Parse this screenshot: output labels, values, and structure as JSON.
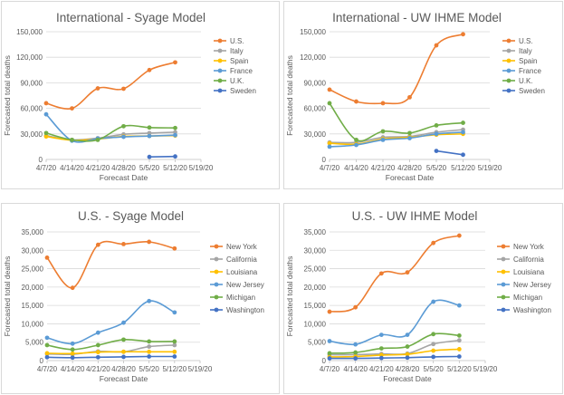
{
  "colors": {
    "orange": "#ED7D31",
    "gray": "#A5A5A5",
    "gold": "#FFC000",
    "lightblue": "#5B9BD5",
    "green": "#70AD47",
    "darkblue": "#4472C4"
  },
  "chart_data": [
    {
      "type": "line",
      "title": "International - Syage Model",
      "xlabel": "Forecast Date",
      "ylabel": "Forecasted total deaths",
      "categories": [
        "4/7/20",
        "4/14/20",
        "4/21/20",
        "4/28/20",
        "5/5/20",
        "5/12/20",
        "5/19/20"
      ],
      "ylim": [
        0,
        150000
      ],
      "yticks": [
        "0",
        "30,000",
        "60,000",
        "90,000",
        "120,000",
        "150,000"
      ],
      "grid": true,
      "legend_position": "right",
      "series": [
        {
          "name": "U.S.",
          "color": "#ED7D31",
          "values": [
            66000,
            60000,
            83500,
            83000,
            105000,
            114000,
            null
          ]
        },
        {
          "name": "Italy",
          "color": "#A5A5A5",
          "values": [
            28000,
            23000,
            25000,
            29500,
            31000,
            32000,
            null
          ]
        },
        {
          "name": "Spain",
          "color": "#FFC000",
          "values": [
            27000,
            22500,
            24000,
            27000,
            27500,
            28000,
            null
          ]
        },
        {
          "name": "France",
          "color": "#5B9BD5",
          "values": [
            53000,
            22000,
            24500,
            26500,
            27500,
            28500,
            null
          ]
        },
        {
          "name": "U.K.",
          "color": "#70AD47",
          "values": [
            31000,
            23000,
            23000,
            39000,
            37500,
            37000,
            null
          ]
        },
        {
          "name": "Sweden",
          "color": "#4472C4",
          "values": [
            null,
            null,
            null,
            null,
            3000,
            3500,
            null
          ]
        }
      ]
    },
    {
      "type": "line",
      "title": "International - UW IHME Model",
      "xlabel": "Forecast Date",
      "ylabel": "Forecasted total deaths",
      "categories": [
        "4/7/20",
        "4/14/20",
        "4/21/20",
        "4/28/20",
        "5/5/20",
        "5/12/20",
        "5/19/20"
      ],
      "ylim": [
        0,
        150000
      ],
      "yticks": [
        "0",
        "30,000",
        "60,000",
        "90,000",
        "120,000",
        "150,000"
      ],
      "grid": true,
      "legend_position": "right",
      "series": [
        {
          "name": "U.S.",
          "color": "#ED7D31",
          "values": [
            82000,
            68000,
            66000,
            73000,
            134000,
            147000,
            null
          ]
        },
        {
          "name": "Italy",
          "color": "#A5A5A5",
          "values": [
            20000,
            20000,
            26000,
            27000,
            32000,
            35000,
            null
          ]
        },
        {
          "name": "Spain",
          "color": "#FFC000",
          "values": [
            19000,
            18000,
            24000,
            26000,
            29000,
            30000,
            null
          ]
        },
        {
          "name": "France",
          "color": "#5B9BD5",
          "values": [
            15000,
            17000,
            23000,
            25000,
            30000,
            32000,
            null
          ]
        },
        {
          "name": "U.K.",
          "color": "#70AD47",
          "values": [
            66000,
            23000,
            33000,
            31000,
            40000,
            43000,
            null
          ]
        },
        {
          "name": "Sweden",
          "color": "#4472C4",
          "values": [
            null,
            null,
            null,
            null,
            10000,
            5500,
            null
          ]
        }
      ]
    },
    {
      "type": "line",
      "title": "U.S. - Syage Model",
      "xlabel": "Forecast Date",
      "ylabel": "Forecasted total deaths",
      "categories": [
        "4/7/20",
        "4/14/20",
        "4/21/20",
        "4/28/20",
        "5/5/20",
        "5/12/20",
        "5/19/20"
      ],
      "ylim": [
        0,
        35000
      ],
      "yticks": [
        "0",
        "5,000",
        "10,000",
        "15,000",
        "20,000",
        "25,000",
        "30,000",
        "35,000"
      ],
      "grid": true,
      "legend_position": "right",
      "series": [
        {
          "name": "New York",
          "color": "#ED7D31",
          "values": [
            28000,
            19800,
            31500,
            31700,
            32300,
            30500,
            null
          ]
        },
        {
          "name": "California",
          "color": "#A5A5A5",
          "values": [
            1800,
            1700,
            2500,
            2400,
            3800,
            4200,
            null
          ]
        },
        {
          "name": "Louisiana",
          "color": "#FFC000",
          "values": [
            2000,
            1900,
            2300,
            2400,
            2400,
            2400,
            null
          ]
        },
        {
          "name": "New Jersey",
          "color": "#5B9BD5",
          "values": [
            6200,
            4600,
            7600,
            10300,
            16200,
            13100,
            null
          ]
        },
        {
          "name": "Michigan",
          "color": "#70AD47",
          "values": [
            4200,
            3000,
            4200,
            5700,
            5200,
            5200,
            null
          ]
        },
        {
          "name": "Washington",
          "color": "#4472C4",
          "values": [
            900,
            800,
            900,
            1000,
            1100,
            1100,
            null
          ]
        }
      ]
    },
    {
      "type": "line",
      "title": "U.S. - UW IHME Model",
      "xlabel": "Forecast Date",
      "ylabel": "Forecasted total deaths",
      "categories": [
        "4/7/20",
        "4/14/20",
        "4/21/20",
        "4/28/20",
        "5/5/20",
        "5/12/20",
        "5/19/20"
      ],
      "ylim": [
        0,
        35000
      ],
      "yticks": [
        "0",
        "5,000",
        "10,000",
        "15,000",
        "20,000",
        "25,000",
        "30,000",
        "35,000"
      ],
      "grid": true,
      "legend_position": "right",
      "series": [
        {
          "name": "New York",
          "color": "#ED7D31",
          "values": [
            13300,
            14500,
            23700,
            24000,
            32000,
            34000,
            null
          ]
        },
        {
          "name": "California",
          "color": "#A5A5A5",
          "values": [
            1600,
            1600,
            1800,
            1900,
            4500,
            5500,
            null
          ]
        },
        {
          "name": "Louisiana",
          "color": "#FFC000",
          "values": [
            1000,
            1100,
            1500,
            1700,
            2700,
            3100,
            null
          ]
        },
        {
          "name": "New Jersey",
          "color": "#5B9BD5",
          "values": [
            5300,
            4400,
            7000,
            7000,
            16000,
            15000,
            null
          ]
        },
        {
          "name": "Michigan",
          "color": "#70AD47",
          "values": [
            2000,
            2200,
            3300,
            3800,
            7200,
            6800,
            null
          ]
        },
        {
          "name": "Washington",
          "color": "#4472C4",
          "values": [
            600,
            600,
            700,
            800,
            1000,
            1100,
            null
          ]
        }
      ]
    }
  ]
}
